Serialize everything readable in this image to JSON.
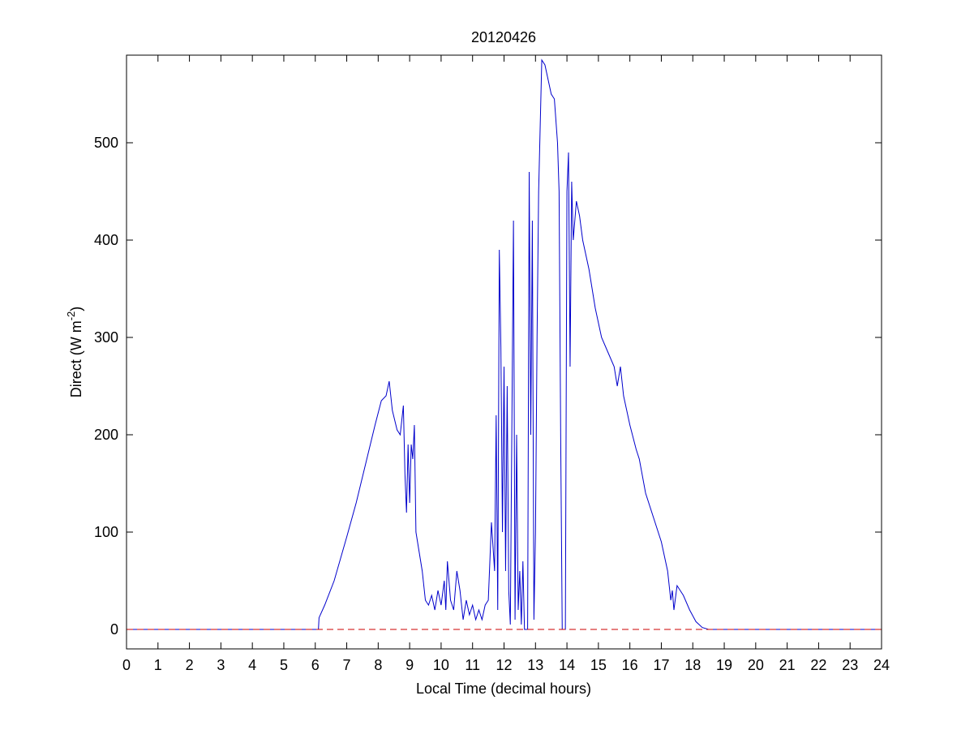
{
  "chart_data": {
    "type": "line",
    "title": "20120426",
    "xlabel": "Local Time (decimal hours)",
    "ylabel": "Direct (W m",
    "ylabel_sup": "-2",
    "ylabel_end": ")",
    "xlim": [
      0,
      24
    ],
    "xticks": [
      0,
      1,
      2,
      3,
      4,
      5,
      6,
      7,
      8,
      9,
      10,
      11,
      12,
      13,
      14,
      15,
      16,
      17,
      18,
      19,
      20,
      21,
      22,
      23,
      24
    ],
    "ylim": [
      -20,
      590
    ],
    "yticks": [
      0,
      100,
      200,
      300,
      400,
      500
    ],
    "series": [
      {
        "color": "#0000cc",
        "dash": false,
        "x": [
          0,
          1,
          2,
          3,
          4,
          5,
          6,
          6.1,
          6.12,
          6.3,
          6.6,
          7,
          7.3,
          7.6,
          7.9,
          8.1,
          8.25,
          8.35,
          8.45,
          8.6,
          8.7,
          8.8,
          8.85,
          8.9,
          8.95,
          9.0,
          9.05,
          9.1,
          9.15,
          9.2,
          9.3,
          9.4,
          9.5,
          9.6,
          9.7,
          9.8,
          9.9,
          10.0,
          10.1,
          10.15,
          10.2,
          10.3,
          10.4,
          10.5,
          10.6,
          10.7,
          10.8,
          10.9,
          11.0,
          11.1,
          11.2,
          11.3,
          11.4,
          11.5,
          11.6,
          11.7,
          11.75,
          11.8,
          11.85,
          11.9,
          11.95,
          12.0,
          12.05,
          12.1,
          12.15,
          12.2,
          12.3,
          12.35,
          12.4,
          12.45,
          12.5,
          12.55,
          12.6,
          12.65,
          12.75,
          12.8,
          12.85,
          12.9,
          12.95,
          13.0,
          13.05,
          13.1,
          13.2,
          13.3,
          13.4,
          13.5,
          13.6,
          13.7,
          13.75,
          13.8,
          13.85,
          13.95,
          14.0,
          14.05,
          14.1,
          14.15,
          14.2,
          14.3,
          14.4,
          14.5,
          14.7,
          14.9,
          15.1,
          15.3,
          15.5,
          15.6,
          15.7,
          15.8,
          16.0,
          16.2,
          16.3,
          16.5,
          16.8,
          17.0,
          17.2,
          17.3,
          17.35,
          17.4,
          17.5,
          17.7,
          17.9,
          18.1,
          18.3,
          18.5,
          19,
          24
        ],
        "values": [
          0,
          0,
          0,
          0,
          0,
          0,
          0,
          0,
          12,
          25,
          50,
          95,
          130,
          170,
          210,
          235,
          240,
          255,
          225,
          205,
          200,
          230,
          160,
          120,
          190,
          130,
          190,
          175,
          210,
          100,
          80,
          60,
          30,
          25,
          35,
          20,
          40,
          25,
          50,
          20,
          70,
          30,
          20,
          60,
          40,
          10,
          30,
          15,
          25,
          10,
          20,
          10,
          25,
          30,
          110,
          60,
          220,
          20,
          390,
          290,
          100,
          270,
          60,
          250,
          40,
          5,
          420,
          10,
          200,
          20,
          60,
          5,
          70,
          0,
          0,
          470,
          200,
          420,
          10,
          100,
          300,
          450,
          585,
          580,
          565,
          550,
          545,
          500,
          450,
          200,
          0,
          0,
          450,
          490,
          270,
          460,
          400,
          440,
          425,
          400,
          370,
          330,
          300,
          285,
          270,
          250,
          270,
          240,
          210,
          185,
          175,
          140,
          110,
          90,
          60,
          30,
          40,
          20,
          45,
          35,
          20,
          8,
          2,
          0,
          0,
          0
        ]
      },
      {
        "color": "#cc0000",
        "dash": true,
        "x": [
          0,
          24
        ],
        "values": [
          0,
          0
        ]
      }
    ]
  }
}
